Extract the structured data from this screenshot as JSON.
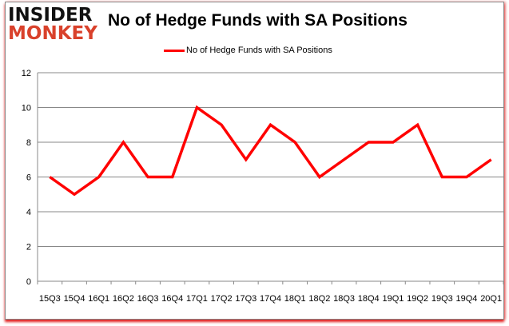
{
  "logo": {
    "line1": "INSIDER",
    "line2": "MONKEY"
  },
  "chart_data": {
    "type": "line",
    "title": "No of Hedge Funds with SA Positions",
    "xlabel": "",
    "ylabel": "",
    "categories": [
      "15Q3",
      "15Q4",
      "16Q1",
      "16Q2",
      "16Q3",
      "16Q4",
      "17Q1",
      "17Q2",
      "17Q3",
      "17Q4",
      "18Q1",
      "18Q2",
      "18Q3",
      "18Q4",
      "19Q1",
      "19Q2",
      "19Q3",
      "19Q4",
      "20Q1"
    ],
    "series": [
      {
        "name": "No of Hedge Funds with SA Positions",
        "values": [
          6,
          5,
          6,
          8,
          6,
          6,
          10,
          9,
          7,
          9,
          8,
          6,
          7,
          8,
          8,
          9,
          6,
          6,
          7
        ],
        "color": "#ff0000"
      }
    ],
    "ylim": [
      0,
      12
    ],
    "yticks": [
      0,
      2,
      4,
      6,
      8,
      10,
      12
    ],
    "grid": true,
    "legend": "top-center"
  }
}
